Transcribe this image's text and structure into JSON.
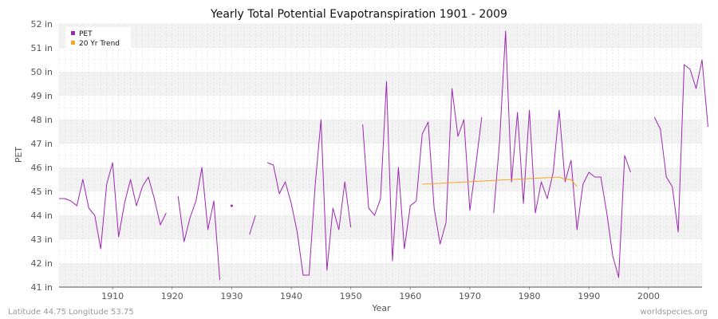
{
  "chart_data": {
    "type": "line",
    "title": "Yearly Total Potential Evapotranspiration 1901 - 2009",
    "xlabel": "Year",
    "ylabel": "PET",
    "xlim": [
      1901,
      2009
    ],
    "ylim": [
      41,
      52
    ],
    "x_ticks": [
      1910,
      1920,
      1930,
      1940,
      1950,
      1960,
      1970,
      1980,
      1990,
      2000
    ],
    "y_ticks": [
      {
        "value": 41,
        "label": "41 in"
      },
      {
        "value": 42,
        "label": "42 in"
      },
      {
        "value": 43,
        "label": "43 in"
      },
      {
        "value": 44,
        "label": "44 in"
      },
      {
        "value": 45,
        "label": "45 in"
      },
      {
        "value": 46,
        "label": "46 in"
      },
      {
        "value": 47,
        "label": "47 in"
      },
      {
        "value": 48,
        "label": "48 in"
      },
      {
        "value": 49,
        "label": "49 in"
      },
      {
        "value": 50,
        "label": "50 in"
      },
      {
        "value": 51,
        "label": "51 in"
      },
      {
        "value": 52,
        "label": "52 in"
      }
    ],
    "grid": true,
    "legend_position": "top-left",
    "series": [
      {
        "name": "PET",
        "color": "#9c27b0",
        "points": [
          [
            1901,
            44.7
          ],
          [
            1902,
            44.7
          ],
          [
            1903,
            44.6
          ],
          [
            1904,
            44.4
          ],
          [
            1905,
            45.5
          ],
          [
            1906,
            44.3
          ],
          [
            1907,
            44.0
          ],
          [
            1908,
            42.6
          ],
          [
            1909,
            45.3
          ],
          [
            1910,
            46.2
          ],
          [
            1911,
            43.1
          ],
          [
            1912,
            44.5
          ],
          [
            1913,
            45.5
          ],
          [
            1914,
            44.4
          ],
          [
            1915,
            45.2
          ],
          [
            1916,
            45.6
          ],
          [
            1917,
            44.7
          ],
          [
            1918,
            43.6
          ],
          [
            1919,
            44.1
          ],
          [
            1920,
            null
          ],
          [
            1921,
            44.8
          ],
          [
            1922,
            42.9
          ],
          [
            1923,
            43.9
          ],
          [
            1924,
            44.6
          ],
          [
            1925,
            46.0
          ],
          [
            1926,
            43.4
          ],
          [
            1927,
            44.6
          ],
          [
            1928,
            41.3
          ],
          [
            1929,
            null
          ],
          [
            1930,
            44.4
          ],
          [
            1931,
            null
          ],
          [
            1932,
            null
          ],
          [
            1933,
            43.2
          ],
          [
            1934,
            44.0
          ],
          [
            1935,
            null
          ],
          [
            1936,
            46.2
          ],
          [
            1937,
            46.1
          ],
          [
            1938,
            44.9
          ],
          [
            1939,
            45.4
          ],
          [
            1940,
            44.5
          ],
          [
            1941,
            43.3
          ],
          [
            1942,
            41.5
          ],
          [
            1943,
            41.5
          ],
          [
            1944,
            45.2
          ],
          [
            1945,
            48.0
          ],
          [
            1946,
            41.7
          ],
          [
            1947,
            44.3
          ],
          [
            1948,
            43.4
          ],
          [
            1949,
            45.4
          ],
          [
            1950,
            43.5
          ],
          [
            1951,
            null
          ],
          [
            1952,
            47.8
          ],
          [
            1953,
            44.3
          ],
          [
            1954,
            44.0
          ],
          [
            1955,
            44.7
          ],
          [
            1956,
            49.6
          ],
          [
            1957,
            42.1
          ],
          [
            1958,
            46.0
          ],
          [
            1959,
            42.6
          ],
          [
            1960,
            44.4
          ],
          [
            1961,
            44.6
          ],
          [
            1962,
            47.4
          ],
          [
            1963,
            47.9
          ],
          [
            1964,
            44.3
          ],
          [
            1965,
            42.8
          ],
          [
            1966,
            43.7
          ],
          [
            1967,
            49.3
          ],
          [
            1968,
            47.3
          ],
          [
            1969,
            48.0
          ],
          [
            1970,
            44.2
          ],
          [
            1971,
            46.1
          ],
          [
            1972,
            48.1
          ],
          [
            1973,
            null
          ],
          [
            1974,
            44.1
          ],
          [
            1975,
            47.1
          ],
          [
            1976,
            51.7
          ],
          [
            1977,
            45.4
          ],
          [
            1978,
            48.3
          ],
          [
            1979,
            44.5
          ],
          [
            1980,
            48.4
          ],
          [
            1981,
            44.1
          ],
          [
            1982,
            45.4
          ],
          [
            1983,
            44.7
          ],
          [
            1984,
            45.8
          ],
          [
            1985,
            48.4
          ],
          [
            1986,
            45.4
          ],
          [
            1987,
            46.3
          ],
          [
            1988,
            43.4
          ],
          [
            1989,
            45.3
          ],
          [
            1990,
            45.8
          ],
          [
            1991,
            45.6
          ],
          [
            1992,
            45.6
          ],
          [
            1993,
            44.1
          ],
          [
            1994,
            42.3
          ],
          [
            1995,
            41.4
          ],
          [
            1996,
            46.5
          ],
          [
            1997,
            45.8
          ],
          [
            1998,
            null
          ],
          [
            1999,
            null
          ],
          [
            2000,
            null
          ],
          [
            2001,
            48.1
          ],
          [
            2002,
            47.6
          ],
          [
            2003,
            45.6
          ],
          [
            2004,
            45.2
          ],
          [
            2005,
            43.3
          ],
          [
            2006,
            50.3
          ],
          [
            2007,
            50.1
          ],
          [
            2008,
            49.3
          ],
          [
            2009,
            50.5
          ],
          [
            2010,
            47.7
          ]
        ]
      },
      {
        "name": "20 Yr Trend",
        "color": "#f5a623",
        "points": [
          [
            1962,
            45.3
          ],
          [
            1985,
            45.6
          ],
          [
            1986,
            45.5
          ],
          [
            1987,
            45.5
          ],
          [
            1988,
            45.2
          ]
        ]
      }
    ]
  },
  "footer": {
    "left": "Latitude 44.75 Longitude 53.75",
    "right": "worldspecies.org"
  }
}
